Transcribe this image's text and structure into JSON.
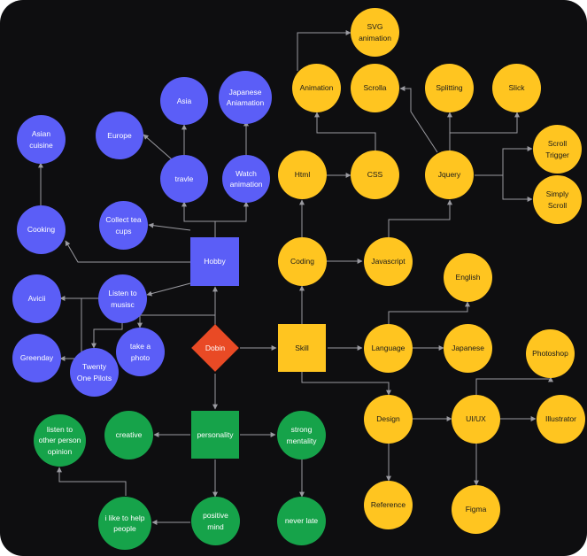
{
  "nodes": {
    "dobin": "Dobin",
    "hobby": "Hobby",
    "skill": "Skill",
    "personality": "personality",
    "travle": "travle",
    "asia": "Asia",
    "europe": "Europe",
    "watch_animation": "Watch\nanimation",
    "japanese_animation": "Japanese\nAniamation",
    "collect_tea_cups": "Collect tea\ncups",
    "cooking": "Cooking",
    "asian_cuisine": "Asian\ncuisine",
    "listen_to_music": "Listen to\nmusisc",
    "avicii": "Avicii",
    "greenday": "Greenday",
    "twenty_one_pilots": "Twenty\nOne Pilots",
    "take_a_photo": "take a\nphoto",
    "coding": "Coding",
    "html": "Html",
    "css": "CSS",
    "animation": "Animation",
    "svg_animation": "SVG\nanimation",
    "scrolla": "Scrolla",
    "javascript": "Javascript",
    "jquery": "Jquery",
    "splitting": "Splitting",
    "slick": "Slick",
    "scroll_trigger": "Scroll\nTrigger",
    "simply_scroll": "Simply\nScroll",
    "language": "Language",
    "english": "English",
    "japanese": "Japanese",
    "design": "Design",
    "uiux": "UI/UX",
    "photoshop": "Photoshop",
    "illustrator": "Illustrator",
    "figma": "Figma",
    "reference": "Reference",
    "creative": "creative",
    "listen_other": "listen to\nother person\nopinion",
    "strong_mentality": "strong\nmentality",
    "never_late": "never late",
    "positive_mind": "positive\nmind",
    "like_to_help": "i like to help\npeople"
  },
  "colors": {
    "background": "#0e0e10",
    "blue": "#5b5ef7",
    "yellow": "#ffc520",
    "green": "#16a34a",
    "red": "#e94a25",
    "edge": "#9a9aa0"
  }
}
